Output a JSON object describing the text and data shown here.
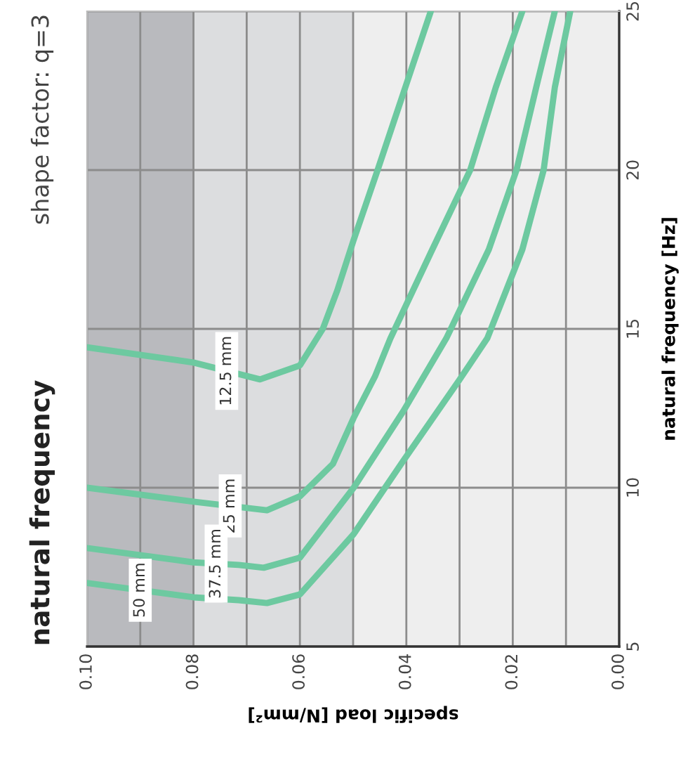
{
  "chart_data": {
    "type": "line",
    "title": "natural frequency",
    "subtitle": "shape factor: q=3",
    "xlabel": "specific load [N/mm²]",
    "ylabel": "natural frequency [Hz]",
    "ylim": [
      5,
      25
    ],
    "yticks": [
      5,
      10,
      15,
      20,
      25
    ],
    "xlim": [
      0.1,
      0
    ],
    "xticks": [
      {
        "value": 0.1,
        "label": "0.10"
      },
      {
        "value": 0.09,
        "label": null
      },
      {
        "value": 0.08,
        "label": "0.08"
      },
      {
        "value": 0.07,
        "label": null
      },
      {
        "value": 0.06,
        "label": "0.06"
      },
      {
        "value": 0.05,
        "label": null
      },
      {
        "value": 0.04,
        "label": "0.04"
      },
      {
        "value": 0.03,
        "label": null
      },
      {
        "value": 0.02,
        "label": "0.02"
      },
      {
        "value": 0.01,
        "label": null
      },
      {
        "value": 0,
        "label": "0.00"
      }
    ],
    "grid": true,
    "legend": false,
    "marker": "none",
    "line_style": "solid",
    "bands": [
      {
        "axis": "x",
        "from": 0.08,
        "to": 0.1,
        "color": "#b9babe"
      },
      {
        "axis": "x",
        "from": 0.05,
        "to": 0.08,
        "color": "#dcdddf"
      }
    ],
    "series": [
      {
        "name": "12.5 mm",
        "color": "#6dc9a0",
        "values": [
          14.42,
          13.94,
          13.41,
          13.85,
          15.0,
          16.2,
          17.8,
          20.0,
          22.7,
          25.0
        ],
        "x": [
          0.1,
          0.08,
          0.0675,
          0.06,
          0.0557,
          0.053,
          0.0499,
          0.0454,
          0.04,
          0.0354
        ]
      },
      {
        "name": "25 mm",
        "color": "#6dc9a0",
        "values": [
          10.0,
          9.56,
          9.29,
          9.73,
          10.75,
          12.2,
          13.5,
          14.7,
          17.4,
          20.0,
          22.6,
          25.0
        ],
        "x": [
          0.1,
          0.08,
          0.0662,
          0.06,
          0.0538,
          0.0499,
          0.0459,
          0.043,
          0.0354,
          0.028,
          0.0232,
          0.0182
        ]
      },
      {
        "name": "37.5 mm",
        "color": "#6dc9a0",
        "values": [
          8.1,
          7.65,
          7.57,
          7.48,
          7.8,
          10.0,
          12.4,
          14.7,
          17.5,
          20.0,
          22.6,
          25.0
        ],
        "x": [
          0.1,
          0.08,
          0.0715,
          0.0668,
          0.06,
          0.0499,
          0.0406,
          0.0325,
          0.0245,
          0.0193,
          0.0156,
          0.0121
        ]
      },
      {
        "name": "50 mm",
        "color": "#6dc9a0",
        "values": [
          7.0,
          6.55,
          6.46,
          6.37,
          6.64,
          8.54,
          10.84,
          13.4,
          14.7,
          17.5,
          20.0,
          22.6,
          25.0
        ],
        "x": [
          0.1,
          0.08,
          0.0715,
          0.0662,
          0.06,
          0.0499,
          0.0406,
          0.03,
          0.0248,
          0.0182,
          0.0142,
          0.0121,
          0.0092
        ]
      }
    ]
  }
}
